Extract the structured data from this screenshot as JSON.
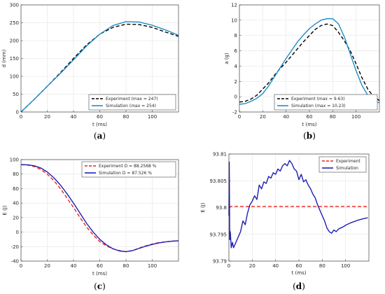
{
  "chart_data": [
    {
      "panel_label": "a",
      "type": "line",
      "xlabel": "t (ms)",
      "ylabel": "d (mm)",
      "xlim": [
        0,
        120
      ],
      "ylim": [
        0,
        300
      ],
      "xticks": [
        0,
        20,
        40,
        60,
        80,
        100
      ],
      "yticks": [
        0,
        50,
        100,
        150,
        200,
        250,
        300
      ],
      "grid": true,
      "legend_position": "bottom-right",
      "series": [
        {
          "name": "Experiment (max = 247)",
          "color": "#000000",
          "style": "dashed",
          "x": [
            0,
            10,
            20,
            30,
            40,
            50,
            60,
            70,
            80,
            90,
            100,
            110,
            120
          ],
          "y": [
            0,
            35,
            72,
            110,
            150,
            188,
            218,
            237,
            246,
            245,
            237,
            224,
            212
          ]
        },
        {
          "name": "Simulation (max = 254)",
          "color": "#1f8ec4",
          "style": "solid",
          "x": [
            0,
            10,
            20,
            30,
            40,
            50,
            60,
            70,
            80,
            90,
            100,
            110,
            120
          ],
          "y": [
            0,
            35,
            72,
            108,
            146,
            185,
            218,
            242,
            253,
            252,
            243,
            230,
            215
          ]
        }
      ]
    },
    {
      "panel_label": "b",
      "type": "line",
      "xlabel": "t (ms)",
      "ylabel": "a (g)",
      "xlim": [
        0,
        120
      ],
      "ylim": [
        -2,
        12
      ],
      "xticks": [
        0,
        20,
        40,
        60,
        80,
        100
      ],
      "yticks": [
        -2,
        0,
        2,
        4,
        6,
        8,
        10,
        12
      ],
      "grid": true,
      "legend_position": "bottom-right",
      "series": [
        {
          "name": "Experiment (max = 9.63)",
          "color": "#000000",
          "style": "dashed",
          "x": [
            0,
            5,
            10,
            15,
            20,
            25,
            30,
            35,
            40,
            45,
            50,
            55,
            60,
            65,
            70,
            75,
            80,
            85,
            90,
            95,
            100,
            105,
            110,
            115,
            120
          ],
          "y": [
            -0.7,
            -0.6,
            -0.3,
            0.2,
            1.0,
            1.8,
            2.8,
            3.7,
            4.5,
            5.4,
            6.3,
            7.2,
            8.0,
            8.8,
            9.3,
            9.5,
            9.3,
            8.4,
            7.3,
            6.0,
            4.3,
            2.5,
            1.0,
            0.0,
            -0.5
          ]
        },
        {
          "name": "Simulation (max = 10.23)",
          "color": "#1f8ec4",
          "style": "solid",
          "x": [
            0,
            5,
            10,
            15,
            20,
            25,
            30,
            35,
            40,
            45,
            50,
            55,
            60,
            65,
            70,
            75,
            80,
            85,
            90,
            95,
            100,
            105,
            110,
            115,
            120
          ],
          "y": [
            -1.0,
            -0.9,
            -0.6,
            -0.2,
            0.4,
            1.4,
            2.6,
            3.8,
            5.0,
            6.1,
            7.2,
            8.1,
            8.9,
            9.5,
            10.0,
            10.2,
            10.2,
            9.5,
            7.8,
            5.6,
            3.4,
            1.5,
            0.2,
            -0.5,
            -0.8
          ]
        }
      ]
    },
    {
      "panel_label": "c",
      "type": "line",
      "xlabel": "t (ms)",
      "ylabel": "E (J)",
      "xlim": [
        0,
        120
      ],
      "ylim": [
        -40,
        100
      ],
      "xticks": [
        0,
        20,
        40,
        60,
        80,
        100
      ],
      "yticks": [
        -40,
        -20,
        0,
        20,
        40,
        60,
        80,
        100
      ],
      "grid": true,
      "legend_position": "top-right",
      "series": [
        {
          "name": "Experiment D = 88.2568 %",
          "color": "#e8231f",
          "style": "dashed",
          "x": [
            0,
            5,
            10,
            15,
            20,
            25,
            30,
            35,
            40,
            45,
            50,
            55,
            60,
            65,
            70,
            75,
            80,
            85,
            90,
            95,
            100,
            105,
            110,
            115,
            120
          ],
          "y": [
            93,
            92.5,
            90.5,
            86.5,
            80,
            71,
            60,
            47,
            34,
            20,
            7,
            -4,
            -13,
            -19,
            -23,
            -25.5,
            -27,
            -25.5,
            -22,
            -19,
            -16.5,
            -14.5,
            -13.5,
            -12.5,
            -12
          ]
        },
        {
          "name": "Simulation D = 87.526 %",
          "color": "#1f1fb4",
          "style": "solid",
          "x": [
            0,
            5,
            10,
            15,
            20,
            25,
            30,
            35,
            40,
            45,
            50,
            55,
            60,
            65,
            70,
            75,
            80,
            85,
            90,
            95,
            100,
            105,
            110,
            115,
            120
          ],
          "y": [
            93,
            92.8,
            91.5,
            88.5,
            83,
            75,
            65,
            53,
            40,
            26,
            12,
            0,
            -10,
            -17.5,
            -23,
            -26,
            -27,
            -25.5,
            -22.5,
            -19.5,
            -17,
            -15,
            -13.5,
            -12.5,
            -12
          ]
        }
      ]
    },
    {
      "panel_label": "d",
      "type": "line",
      "xlabel": "t (ms)",
      "ylabel": "E (J)",
      "xlim": [
        0,
        120
      ],
      "ylim": [
        93.79,
        93.81
      ],
      "xticks": [
        0,
        20,
        40,
        60,
        80,
        100
      ],
      "yticks": [
        93.79,
        93.795,
        93.8,
        93.805,
        93.81
      ],
      "ytick_labels": [
        "93.79",
        "93.795",
        "93.8",
        "93.805",
        "93.81"
      ],
      "grid": true,
      "legend_position": "top-right",
      "series": [
        {
          "name": "Experiment",
          "color": "#e8231f",
          "style": "dashed",
          "x": [
            0,
            120
          ],
          "y": [
            93.8002,
            93.8002
          ]
        },
        {
          "name": "Simulation",
          "color": "#1f1fb4",
          "style": "solid",
          "x": [
            0,
            0.3,
            0.7,
            1.2,
            2,
            3,
            4,
            6,
            8,
            10,
            12,
            14,
            16,
            18,
            20,
            22,
            24,
            26,
            28,
            30,
            32,
            34,
            36,
            38,
            40,
            42,
            44,
            46,
            48,
            50,
            52,
            54,
            56,
            58,
            60,
            62,
            64,
            66,
            68,
            70,
            72,
            74,
            76,
            78,
            80,
            82,
            84,
            86,
            88,
            90,
            92,
            94,
            96,
            98,
            100,
            105,
            110,
            115,
            119
          ],
          "y": [
            93.7985,
            93.8085,
            93.794,
            93.7955,
            93.7925,
            93.7935,
            93.7925,
            93.7935,
            93.7945,
            93.7955,
            93.7975,
            93.7968,
            93.799,
            93.8005,
            93.8012,
            93.8022,
            93.8015,
            93.8042,
            93.8035,
            93.8048,
            93.8045,
            93.8058,
            93.8055,
            93.8065,
            93.8062,
            93.8072,
            93.8068,
            93.8078,
            93.8082,
            93.8078,
            93.8088,
            93.8082,
            93.8072,
            93.8068,
            93.8052,
            93.8062,
            93.8048,
            93.8052,
            93.8042,
            93.8035,
            93.8025,
            93.8018,
            93.8005,
            93.7995,
            93.7985,
            93.7975,
            93.7962,
            93.7955,
            93.7952,
            93.7958,
            93.7955,
            93.796,
            93.7962,
            93.7964,
            93.7967,
            93.7972,
            93.7976,
            93.7979,
            93.7981
          ]
        }
      ]
    }
  ]
}
